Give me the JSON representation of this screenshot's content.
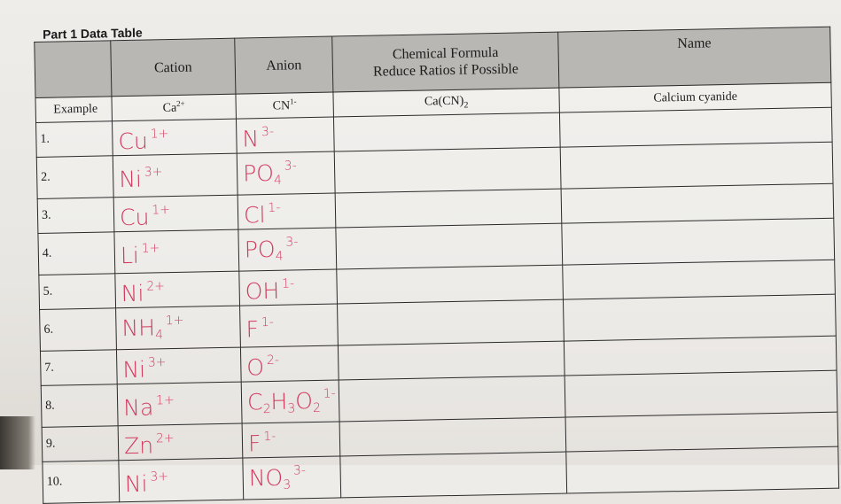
{
  "title": "Part 1 Data Table",
  "headers": {
    "row_label": "",
    "cation": "Cation",
    "anion": "Anion",
    "formula_line1": "Chemical Formula",
    "formula_line2": "Reduce Ratios if Possible",
    "name": "Name"
  },
  "example": {
    "label": "Example",
    "cation": "Ca",
    "cation_charge": "2+",
    "anion": "CN",
    "anion_charge": "1-",
    "formula": "Ca(CN)",
    "formula_sub": "2",
    "name": "Calcium cyanide"
  },
  "ink_color": "#d23a5e",
  "rows": [
    {
      "label": "1.",
      "cation": [
        {
          "t": "Cu"
        },
        {
          "sup": "1+"
        }
      ],
      "anion": [
        {
          "t": "N"
        },
        {
          "sup": "3-"
        }
      ],
      "formula": "",
      "name": ""
    },
    {
      "label": "2.",
      "cation": [
        {
          "t": "Ni"
        },
        {
          "sup": "3+"
        }
      ],
      "anion": [
        {
          "t": "PO"
        },
        {
          "sub": "4"
        },
        {
          "sup": "3-"
        }
      ],
      "formula": "",
      "name": ""
    },
    {
      "label": "3.",
      "cation": [
        {
          "t": "Cu"
        },
        {
          "sup": "1+"
        }
      ],
      "anion": [
        {
          "t": "Cl"
        },
        {
          "sup": "1-"
        }
      ],
      "formula": "",
      "name": ""
    },
    {
      "label": "4.",
      "cation": [
        {
          "t": "Li"
        },
        {
          "sup": "1+"
        }
      ],
      "anion": [
        {
          "t": "PO"
        },
        {
          "sub": "4"
        },
        {
          "sup": "3-"
        }
      ],
      "formula": "",
      "name": ""
    },
    {
      "label": "5.",
      "cation": [
        {
          "t": "Ni"
        },
        {
          "sup": "2+"
        }
      ],
      "anion": [
        {
          "t": "OH"
        },
        {
          "sup": "1-"
        }
      ],
      "formula": "",
      "name": ""
    },
    {
      "label": "6.",
      "cation": [
        {
          "t": "NH"
        },
        {
          "sub": "4"
        },
        {
          "sup": "1+"
        }
      ],
      "anion": [
        {
          "t": "F"
        },
        {
          "sup": "1-"
        }
      ],
      "formula": "",
      "name": ""
    },
    {
      "label": "7.",
      "cation": [
        {
          "t": "Ni"
        },
        {
          "sup": "3+"
        }
      ],
      "anion": [
        {
          "t": "O"
        },
        {
          "sup": "2-"
        }
      ],
      "formula": "",
      "name": ""
    },
    {
      "label": "8.",
      "cation": [
        {
          "t": "Na"
        },
        {
          "sup": "1+"
        }
      ],
      "anion": [
        {
          "t": "C"
        },
        {
          "sub": "2"
        },
        {
          "t": "H"
        },
        {
          "sub": "3"
        },
        {
          "t": "O"
        },
        {
          "sub": "2"
        },
        {
          "sup": "1-"
        }
      ],
      "formula": "",
      "name": ""
    },
    {
      "label": "9.",
      "cation": [
        {
          "t": "Zn"
        },
        {
          "sup": "2+"
        }
      ],
      "anion": [
        {
          "t": "F"
        },
        {
          "sup": "1-"
        }
      ],
      "formula": "",
      "name": ""
    },
    {
      "label": "10.",
      "cation": [
        {
          "t": "Ni"
        },
        {
          "sup": "3+"
        }
      ],
      "anion": [
        {
          "t": "NO"
        },
        {
          "sub": "3"
        },
        {
          "sup": "3-"
        }
      ],
      "formula": "",
      "name": ""
    }
  ]
}
